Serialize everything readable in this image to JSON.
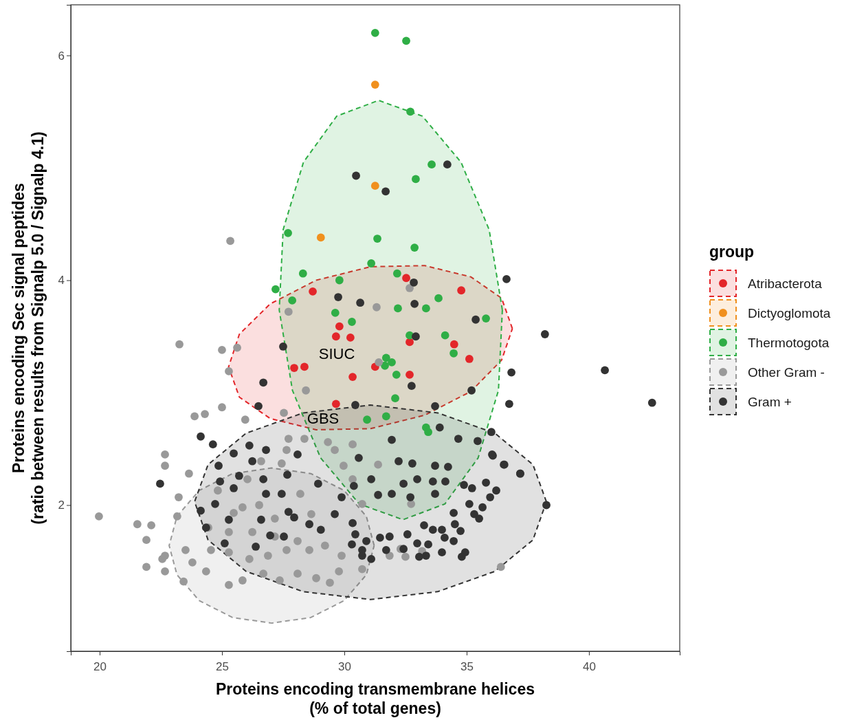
{
  "chart_data": {
    "type": "scatter",
    "xlabel": "Proteins encoding transmembrane helices\n(% of total genes)",
    "ylabel": "Proteins encoding Sec signal peptides\n(ratio between results from Signalp 5.0 / Signalp 4.1)",
    "legend_title": "group",
    "legend": "right",
    "grid": false,
    "marker": "circle",
    "xlim": [
      18.82,
      43.71
    ],
    "ylim": [
      0.7,
      6.45
    ],
    "xticks": [
      20,
      25,
      30,
      35,
      40
    ],
    "yticks": [
      2,
      4,
      6
    ],
    "annotations": [
      "SIUC",
      "GBS"
    ],
    "series": [
      {
        "name": "Atribacterota",
        "color": "#e3262a",
        "x": [
          32.53,
          34.78,
          28.71,
          29.8,
          29.66,
          30.25,
          27.95,
          28.37,
          30.34,
          31.26,
          32.67,
          32.67,
          34.49,
          35.11,
          29.66
        ],
        "values": [
          4.02,
          3.91,
          3.9,
          3.59,
          3.5,
          3.49,
          3.22,
          3.23,
          3.14,
          3.23,
          3.45,
          3.16,
          3.43,
          3.3,
          2.9
        ]
      },
      {
        "name": "Dictyoglomota",
        "color": "#f0901e",
        "x": [
          31.26,
          31.26,
          29.04
        ],
        "values": [
          5.74,
          4.84,
          4.38
        ]
      },
      {
        "name": "Thermotogota",
        "color": "#2fae46",
        "x": [
          31.26,
          32.53,
          32.7,
          33.57,
          32.92,
          27.7,
          31.35,
          32.87,
          31.1,
          28.31,
          32.16,
          29.8,
          27.19,
          27.87,
          33.85,
          32.19,
          33.34,
          29.63,
          30.31,
          35.79,
          34.12,
          32.67,
          34.47,
          31.71,
          31.94,
          31.66,
          32.13,
          32.08,
          30.93,
          31.71,
          33.34,
          33.43
        ],
        "values": [
          6.2,
          6.13,
          5.5,
          5.03,
          4.9,
          4.42,
          4.37,
          4.29,
          4.15,
          4.06,
          4.06,
          4.0,
          3.92,
          3.82,
          3.84,
          3.75,
          3.75,
          3.71,
          3.63,
          3.66,
          3.51,
          3.51,
          3.35,
          3.31,
          3.27,
          3.24,
          3.16,
          2.95,
          2.76,
          2.79,
          2.69,
          2.65
        ]
      },
      {
        "name": "Other Gram -",
        "color": "#999999",
        "x": [
          25.34,
          23.26,
          25.0,
          25.62,
          25.28,
          27.72,
          32.67,
          31.32,
          31.41,
          28.43,
          25.95,
          25.0,
          24.3,
          23.88,
          27.53,
          23.65,
          22.67,
          22.67,
          19.97,
          21.54,
          22.11,
          21.91,
          21.91,
          23.17,
          23.51,
          22.56,
          22.67,
          23.43,
          36.4,
          23.23,
          24.44,
          25.48,
          22.67,
          23.79,
          24.35,
          25.28,
          25.84,
          26.69,
          27.36,
          28.09,
          28.85,
          29.41,
          29.78,
          29.89,
          28.57,
          27.64,
          26.88,
          26.12,
          25.28,
          24.55,
          28.09,
          29.21,
          27.16,
          26.24,
          25.28,
          25.84,
          26.52,
          28.2,
          28.65,
          27.16,
          24.83,
          26.04,
          27.44,
          27.72,
          27.64,
          28.37,
          29.33,
          29.61,
          26.6,
          30.34,
          29.97,
          30.73,
          30.34,
          31.38,
          32.73,
          32.3,
          32.5,
          33.18,
          31.85,
          30.73
        ],
        "values": [
          4.35,
          3.43,
          3.38,
          3.4,
          3.19,
          3.72,
          3.93,
          3.76,
          3.27,
          3.02,
          2.76,
          2.87,
          2.81,
          2.79,
          2.82,
          2.28,
          2.45,
          2.35,
          1.9,
          1.83,
          1.82,
          1.69,
          1.45,
          1.9,
          1.6,
          1.52,
          1.41,
          1.32,
          1.45,
          2.07,
          1.8,
          1.93,
          1.55,
          1.49,
          1.41,
          1.29,
          1.33,
          1.39,
          1.33,
          1.39,
          1.35,
          1.31,
          1.41,
          1.55,
          1.6,
          1.6,
          1.55,
          1.52,
          1.58,
          1.6,
          1.68,
          1.64,
          1.72,
          1.76,
          1.76,
          1.98,
          2.0,
          2.1,
          1.92,
          1.88,
          2.13,
          2.23,
          2.37,
          2.59,
          2.49,
          2.59,
          2.56,
          2.49,
          2.39,
          2.23,
          2.35,
          2.01,
          2.54,
          2.36,
          2.01,
          1.61,
          1.54,
          1.59,
          1.55,
          1.43
        ]
      },
      {
        "name": "Gram +",
        "color": "#333333",
        "x": [
          30.48,
          31.69,
          34.21,
          36.63,
          32.84,
          29.75,
          30.65,
          32.87,
          35.37,
          32.92,
          27.5,
          38.2,
          40.65,
          36.83,
          26.69,
          32.75,
          35.2,
          42.58,
          26.49,
          36.74,
          30.45,
          33.71,
          24.13,
          24.63,
          22.47,
          36.01,
          36.04,
          36.54,
          37.19,
          38.26,
          35.45,
          26.12,
          26.8,
          25.48,
          24.86,
          26.24,
          25.7,
          26.69,
          27.67,
          28.09,
          24.92,
          25.48,
          24.72,
          24.13,
          25.28,
          26.8,
          27.44,
          27.72,
          26.6,
          27.95,
          28.57,
          29.04,
          24.35,
          25.11,
          26.38,
          26.97,
          27.53,
          29.61,
          30.34,
          30.45,
          30.9,
          30.73,
          28.93,
          29.89,
          33.9,
          34.66,
          31.94,
          30.59,
          32.22,
          32.78,
          33.71,
          34.24,
          31.1,
          32.98,
          33.62,
          34.13,
          30.39,
          31.38,
          31.94,
          32.42,
          33.71,
          32.7,
          34.89,
          35.22,
          35.79,
          36.21,
          35.96,
          35.11,
          35.65,
          34.47,
          35.31,
          36.07,
          36.52,
          37.19,
          35.51,
          33.26,
          33.99,
          34.52,
          34.75,
          33.62,
          32.58,
          31.85,
          34.1,
          34.47,
          32.98,
          33.43,
          33.99,
          34.94,
          34.8,
          33.34,
          33.06,
          32.42,
          31.71,
          31.1,
          31.46,
          30.73,
          30.31
        ],
        "values": [
          4.93,
          4.79,
          5.03,
          4.01,
          3.98,
          3.85,
          3.8,
          3.79,
          3.65,
          3.5,
          3.41,
          3.52,
          3.2,
          3.18,
          3.09,
          3.06,
          3.02,
          2.91,
          2.88,
          2.9,
          2.89,
          2.88,
          2.61,
          2.54,
          2.19,
          2.65,
          2.45,
          2.36,
          2.28,
          2.0,
          2.57,
          2.53,
          2.49,
          2.46,
          2.35,
          2.39,
          2.26,
          2.23,
          2.27,
          2.45,
          2.21,
          2.15,
          2.01,
          1.95,
          1.87,
          2.1,
          2.1,
          1.94,
          1.87,
          1.89,
          1.83,
          1.78,
          1.8,
          1.66,
          1.63,
          1.73,
          1.72,
          1.92,
          1.84,
          1.74,
          1.68,
          1.55,
          2.19,
          2.07,
          2.69,
          2.59,
          2.58,
          2.42,
          2.39,
          2.37,
          2.35,
          2.34,
          2.23,
          2.23,
          2.21,
          2.21,
          2.17,
          2.09,
          2.1,
          2.19,
          2.1,
          2.07,
          2.18,
          2.15,
          2.2,
          2.13,
          2.07,
          2.01,
          1.98,
          1.93,
          1.92,
          2.44,
          2.36,
          2.28,
          1.88,
          1.82,
          1.78,
          1.83,
          1.77,
          1.78,
          1.74,
          1.72,
          1.71,
          1.68,
          1.66,
          1.65,
          1.58,
          1.58,
          1.54,
          1.55,
          1.54,
          1.61,
          1.6,
          1.52,
          1.71,
          1.6,
          1.65
        ]
      },
      {
        "type": "area",
        "marker": "none",
        "color": "#e3262a",
        "line_style": "dashed",
        "x": [
          36.87,
          36.43,
          35.17,
          33.29,
          31.07,
          28.85,
          26.97,
          25.71,
          25.27,
          25.71,
          26.97,
          28.85,
          31.07,
          33.29,
          35.17,
          36.43,
          36.87
        ],
        "values": [
          3.57,
          3.84,
          4.03,
          4.13,
          4.12,
          4.0,
          3.79,
          3.52,
          3.23,
          2.96,
          2.77,
          2.67,
          2.68,
          2.8,
          3.01,
          3.29,
          3.57
        ]
      },
      {
        "type": "area",
        "marker": "none",
        "color": "#2fae46",
        "line_style": "dashed",
        "x": [
          36.46,
          35.92,
          34.77,
          33.19,
          31.4,
          29.69,
          28.33,
          27.5,
          27.34,
          27.88,
          29.03,
          30.61,
          32.4,
          34.11,
          35.47,
          36.3,
          36.46
        ],
        "values": [
          3.735,
          4.45,
          5.05,
          5.46,
          5.6,
          5.46,
          5.05,
          4.45,
          3.735,
          3.02,
          2.42,
          2.01,
          1.87,
          2.01,
          2.42,
          3.02,
          3.735
        ]
      },
      {
        "type": "area",
        "marker": "none",
        "color": "#999999",
        "line_style": "dashed",
        "x": [
          31.22,
          30.9,
          29.99,
          28.63,
          27.03,
          25.43,
          24.07,
          23.16,
          22.84,
          23.16,
          24.07,
          25.43,
          27.03,
          28.63,
          29.99,
          30.9,
          31.22
        ],
        "values": [
          1.64,
          1.9,
          2.13,
          2.28,
          2.33,
          2.28,
          2.13,
          1.9,
          1.64,
          1.38,
          1.15,
          1.0,
          0.95,
          1.0,
          1.15,
          1.38,
          1.64
        ]
      },
      {
        "type": "area",
        "marker": "none",
        "color": "#333333",
        "line_style": "dashed",
        "x": [
          38.26,
          37.71,
          36.15,
          33.82,
          31.07,
          28.32,
          25.99,
          24.43,
          23.88,
          24.43,
          25.99,
          28.32,
          31.07,
          33.82,
          36.15,
          37.71,
          38.26
        ],
        "values": [
          2.03,
          2.36,
          2.64,
          2.82,
          2.89,
          2.82,
          2.64,
          2.36,
          2.03,
          1.69,
          1.41,
          1.23,
          1.16,
          1.23,
          1.41,
          1.69,
          2.03
        ]
      }
    ]
  }
}
